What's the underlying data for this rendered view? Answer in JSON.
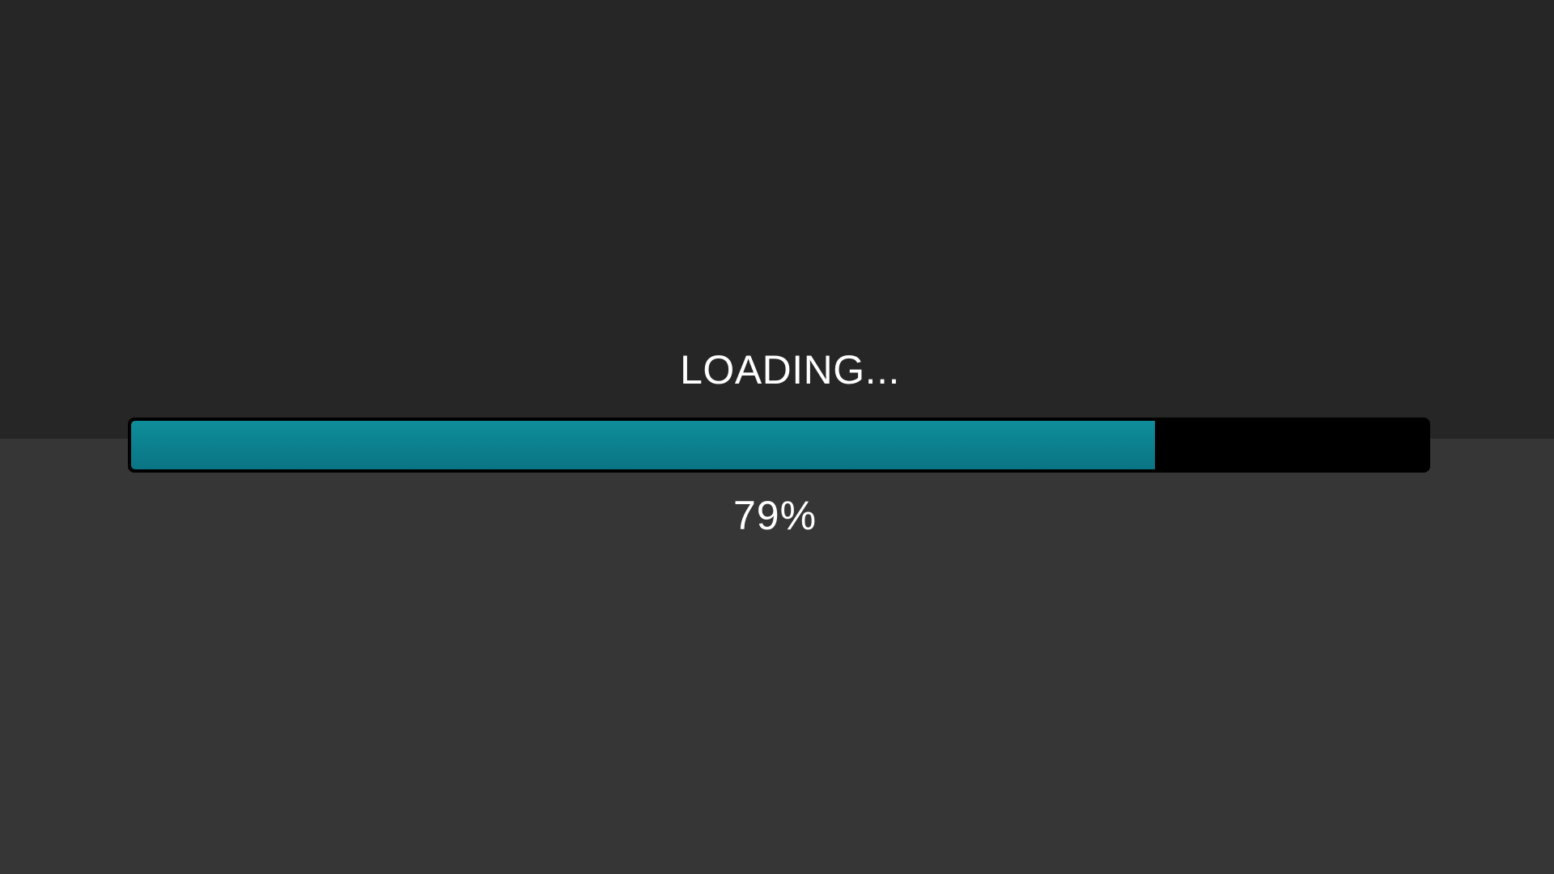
{
  "loading_screen": {
    "status_text": "LOADING...",
    "percent_text": "79%",
    "progress": 0.79
  },
  "colors": {
    "background_top": "#262626",
    "background_bottom": "#363636",
    "track": "#000000",
    "fill_start": "#0e8e9a",
    "fill_end": "#0a7484",
    "text": "#ffffff"
  }
}
